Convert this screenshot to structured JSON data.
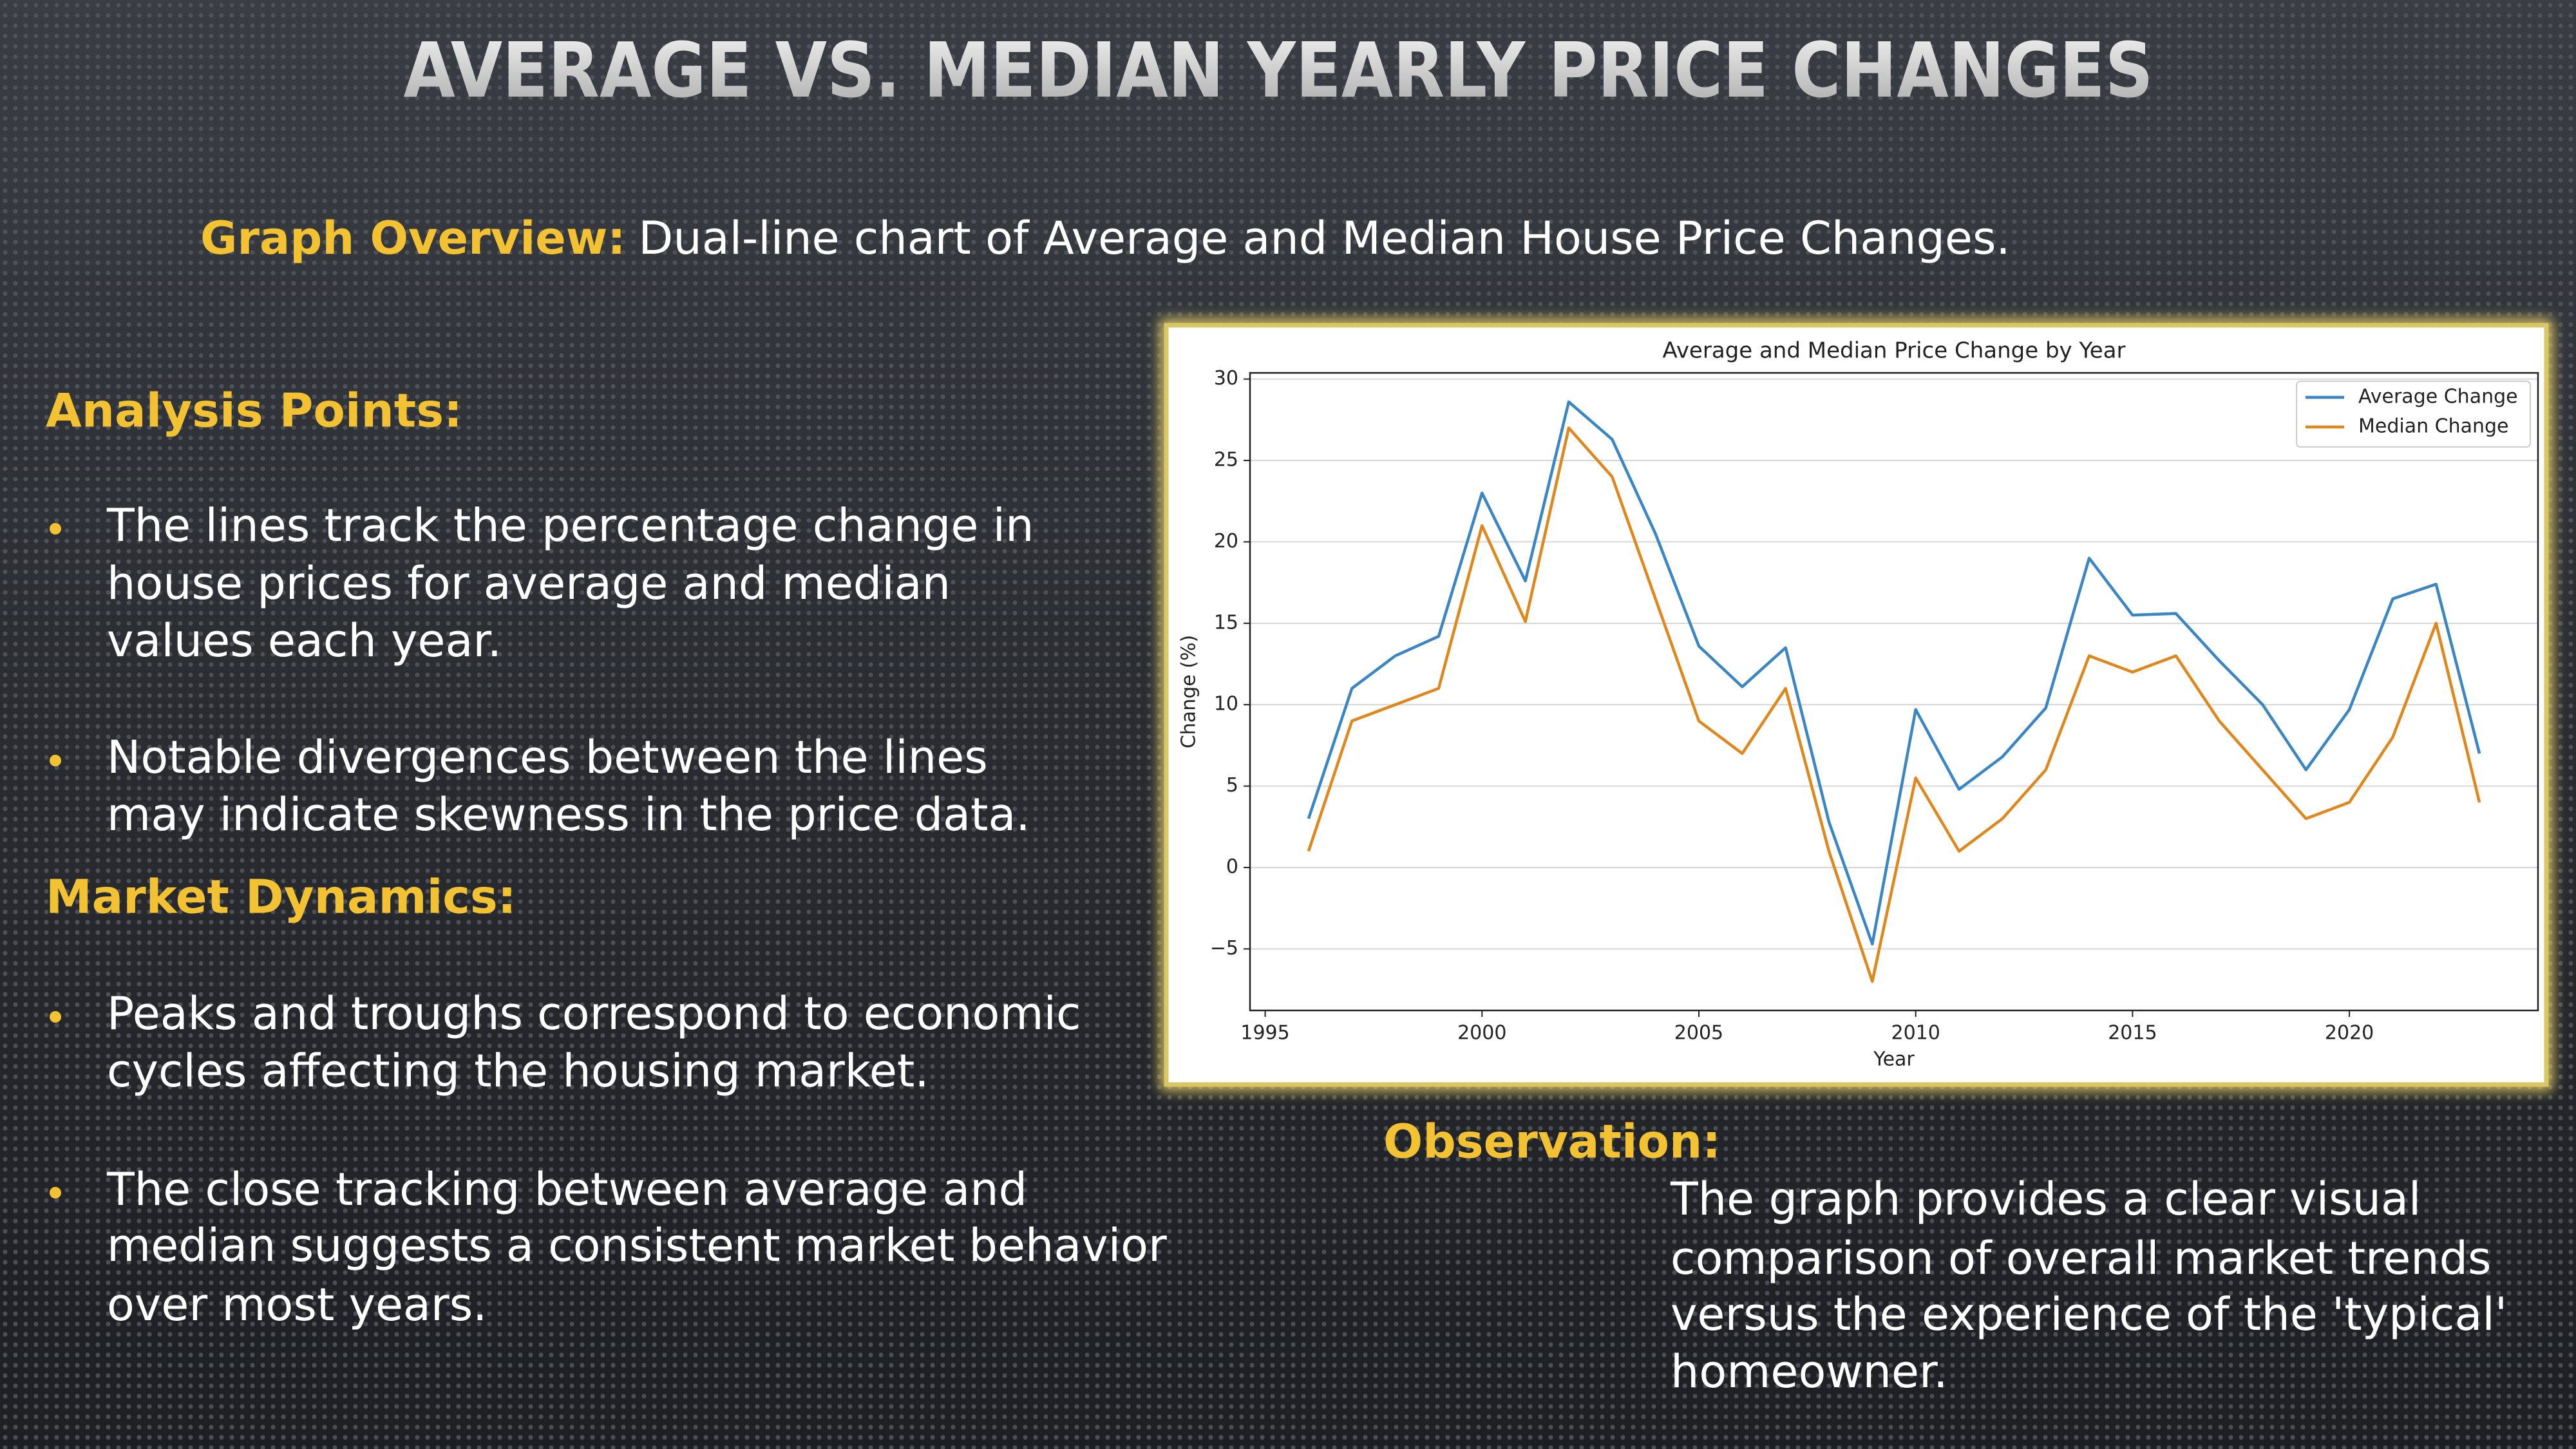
{
  "slide": {
    "title": "AVERAGE VS. MEDIAN YEARLY PRICE CHANGES",
    "overview": {
      "label": "Graph Overview:",
      "text": "Dual-line chart of Average and Median House Price Changes."
    },
    "sections": [
      {
        "heading": "Analysis Points:",
        "bullets": [
          [
            "The lines track the percentage change in",
            "house prices for average and median",
            "values each year."
          ],
          [
            "Notable divergences between the lines",
            "may indicate skewness in the price data."
          ]
        ]
      },
      {
        "heading": "Market Dynamics:",
        "bullets": [
          [
            "Peaks and troughs correspond to economic",
            "cycles affecting the housing market."
          ],
          [
            "The close tracking between average and",
            "median suggests a consistent market behavior",
            "over most years."
          ]
        ]
      }
    ],
    "observation": {
      "heading": "Observation:",
      "lines": [
        "The graph provides a clear visual",
        "comparison of overall market trends",
        "versus the experience of the 'typical'",
        "homeowner."
      ]
    }
  },
  "chart_data": {
    "type": "line",
    "title": "Average and Median Price Change by Year",
    "x_label": "Year",
    "y_label": "Change (%)",
    "x": [
      1996,
      1997,
      1998,
      1999,
      2000,
      2001,
      2002,
      2003,
      2004,
      2005,
      2006,
      2007,
      2008,
      2009,
      2010,
      2011,
      2012,
      2013,
      2014,
      2015,
      2016,
      2017,
      2018,
      2019,
      2020,
      2021,
      2022,
      2023
    ],
    "series": [
      {
        "name": "Average Change",
        "color": "#3a86c4",
        "values": [
          3,
          11,
          13,
          14.2,
          23,
          17.6,
          28.6,
          26.3,
          20.5,
          13.6,
          11.1,
          13.5,
          2.8,
          -4.7,
          9.7,
          4.8,
          6.8,
          9.8,
          19,
          15.5,
          15.6,
          12.7,
          10,
          6,
          9.7,
          16.5,
          17.4,
          7
        ]
      },
      {
        "name": "Median Change",
        "color": "#e0871c",
        "values": [
          1,
          9,
          10,
          11,
          21,
          15.1,
          27,
          24,
          16.5,
          9,
          7,
          11,
          1,
          -7,
          5.5,
          1,
          3,
          6,
          13,
          12,
          13,
          9,
          6,
          3,
          4,
          8,
          15,
          4
        ]
      }
    ],
    "xlim": [
      1994.65,
      2024.35
    ],
    "ylim": [
      -8.78,
      30.38
    ],
    "xticks": [
      1995,
      2000,
      2005,
      2010,
      2015,
      2020
    ],
    "yticks": [
      {
        "value": -5,
        "label": "−5"
      },
      0,
      5,
      10,
      15,
      20,
      25,
      30
    ],
    "grid": true,
    "legend": "upper right"
  }
}
